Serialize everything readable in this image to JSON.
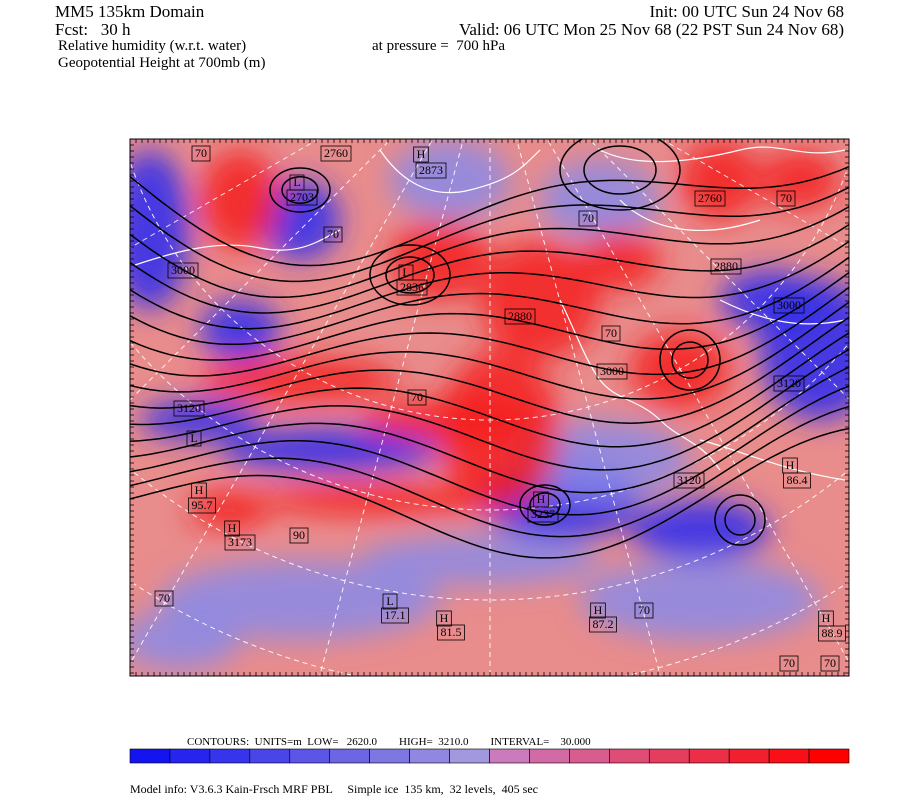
{
  "header": {
    "title": "MM5 135km Domain",
    "init": "Init: 00 UTC Sun 24 Nov 68",
    "forecast": "Fcst:   30 h",
    "valid": "Valid: 06 UTC Mon 25 Nov 68 (22 PST Sun 24 Nov 68)",
    "field_1": "Relative humidity (w.r.t. water)",
    "level": "at pressure =  700 hPa",
    "field_2": "Geopotential Height at 700mb (m)"
  },
  "map": {
    "labels": [
      "70",
      "2760",
      "H",
      "2873",
      "L",
      "2703",
      "2760",
      "70",
      "70",
      "70",
      "3000",
      "2880",
      "L",
      "2836",
      "2880",
      "3000",
      "70",
      "3000",
      "3120",
      "3120",
      "70",
      "L",
      "H",
      "86.4",
      "3120",
      "H",
      "3237",
      "H",
      "95.7",
      "H",
      "3173",
      "90",
      "70",
      "L",
      "17.1",
      "H",
      "81.5",
      "H",
      "87.2",
      "70",
      "H",
      "88.9",
      "70",
      "70"
    ]
  },
  "footer": {
    "contours": "CONTOURS:  UNITS=m  LOW=   2620.0        HIGH=  3210.0        INTERVAL=    30.000",
    "model_info": "Model info: V3.6.3 Kain-Frsch MRF PBL     Simple ice  135 km,  32 levels,  405 sec"
  }
}
